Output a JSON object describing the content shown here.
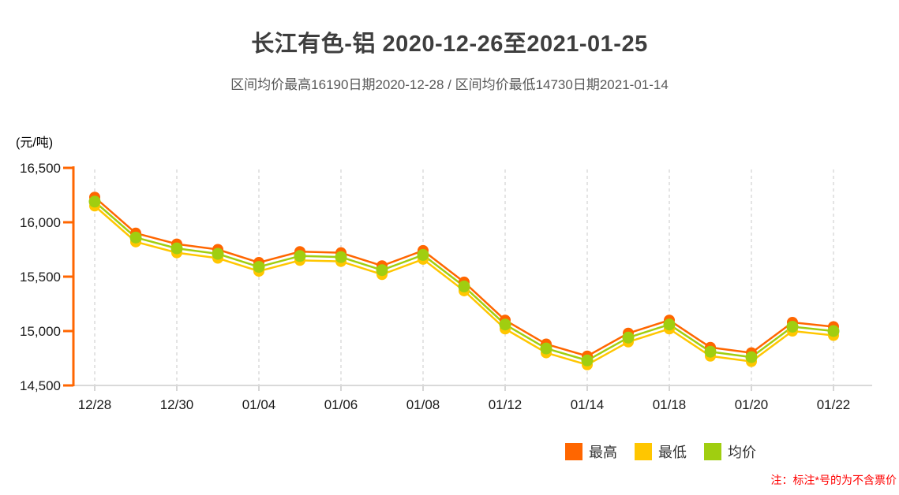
{
  "page": {
    "title": "长江有色-铝 2020-12-26至2021-01-25",
    "subtitle": "区间均价最高16190日期2020-12-28 / 区间均价最低14730日期2021-01-14",
    "unit_label": "(元/吨)",
    "footnote": "注：标注*号的为不含票价",
    "footnote_color": "#FF0000"
  },
  "legend": {
    "position": "bottom-right",
    "items": [
      {
        "name": "highest",
        "label": "最高",
        "color": "#FF6600"
      },
      {
        "name": "lowest",
        "label": "最低",
        "color": "#FFC600"
      },
      {
        "name": "average",
        "label": "均价",
        "color": "#A0CE10"
      }
    ]
  },
  "chart_data": {
    "type": "line",
    "title": "长江有色-铝 2020-12-26至2021-01-25",
    "subtitle": "区间均价最高16190日期2020-12-28 / 区间均价最低14730日期2021-01-14",
    "ylabel": "(元/吨)",
    "xlabel": "",
    "ylim": [
      14500,
      16500
    ],
    "y_tick_values": [
      16500,
      16000,
      15500,
      15000,
      14500
    ],
    "y_tick_labels": [
      "16,500",
      "16,000",
      "15,500",
      "15,000",
      "14,500"
    ],
    "x": [
      "12/28",
      "12/29",
      "12/30",
      "12/31",
      "01/04",
      "01/05",
      "01/06",
      "01/07",
      "01/08",
      "01/11",
      "01/12",
      "01/13",
      "01/14",
      "01/15",
      "01/18",
      "01/19",
      "01/20",
      "01/21",
      "01/22"
    ],
    "x_tick_labels": [
      "12/28",
      "12/30",
      "01/04",
      "01/06",
      "01/08",
      "01/12",
      "01/14",
      "01/18",
      "01/20",
      "01/22"
    ],
    "grid": "vertical-dashed-at-labeled-ticks",
    "legend_position": "bottom-right",
    "series": [
      {
        "name": "最高",
        "color": "#FF6600",
        "values": [
          16230,
          15900,
          15800,
          15750,
          15630,
          15730,
          15720,
          15600,
          15740,
          15450,
          15100,
          14880,
          14770,
          14980,
          15100,
          14850,
          14800,
          15080,
          15040
        ]
      },
      {
        "name": "最低",
        "color": "#FFC600",
        "values": [
          16150,
          15820,
          15720,
          15670,
          15550,
          15650,
          15640,
          15520,
          15660,
          15370,
          15020,
          14800,
          14690,
          14900,
          15020,
          14770,
          14720,
          15000,
          14960
        ]
      },
      {
        "name": "均价",
        "color": "#A0CE10",
        "values": [
          16190,
          15860,
          15760,
          15710,
          15590,
          15690,
          15680,
          15560,
          15700,
          15410,
          15060,
          14840,
          14730,
          14940,
          15060,
          14810,
          14760,
          15040,
          15000
        ]
      }
    ],
    "annotations": {
      "avg_max": {
        "value": 16190,
        "date": "2020-12-28"
      },
      "avg_min": {
        "value": 14730,
        "date": "2021-01-14"
      }
    },
    "colors": {
      "y_axis": "#FF6600",
      "x_axis": "#D9D9D9",
      "grid": "#DCDCDC",
      "tick": "#C8C8C8",
      "axis_label": "#1A1A1A"
    }
  }
}
